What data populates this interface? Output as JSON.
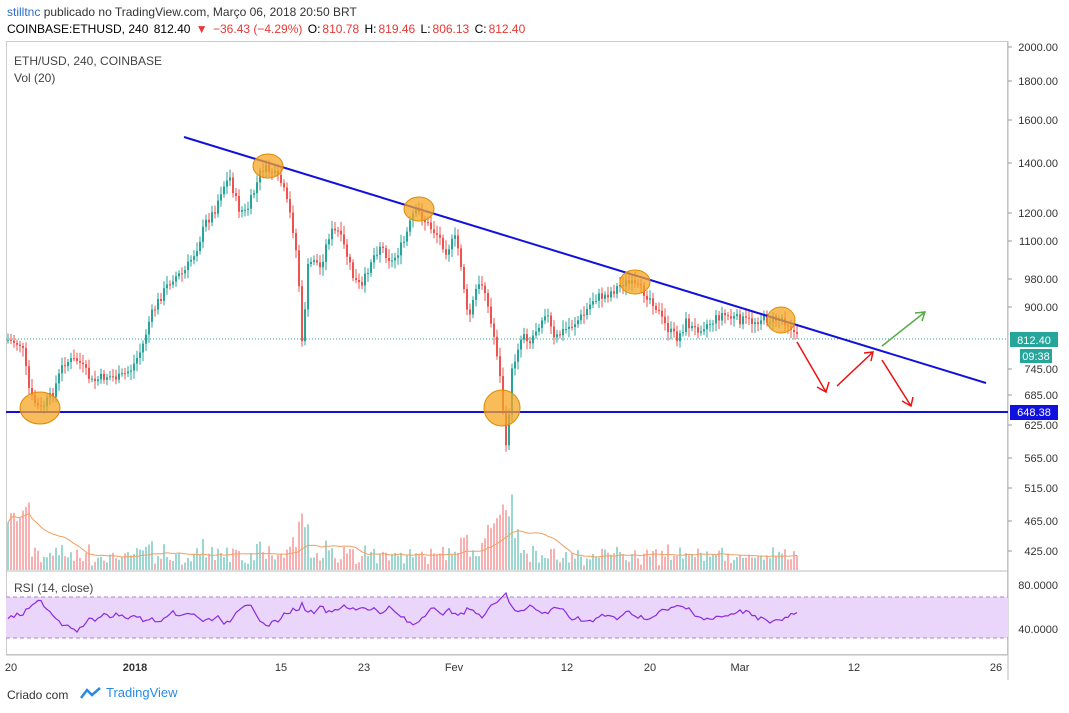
{
  "header": {
    "user": "stilltnc",
    "published_text": "publicado no TradingView.com, Março 06, 2018 20:50 BRT",
    "symbol_line": "COINBASE:ETHUSD, 240",
    "last": "812.40",
    "change": "−3 6.43 (−4.29%)",
    "change_exact": "−36.43 (−4.29%)",
    "open_label": "O:",
    "open": "810.78",
    "high_label": "H:",
    "high": "819.46",
    "low_label": "L:",
    "low": "806.13",
    "close_label": "C:",
    "close": "812.40"
  },
  "panels": {
    "main_label": "ETH/USD, 240, COINBASE",
    "vol_label": "Vol (20)",
    "rsi_label": "RSI (14, close)"
  },
  "price_axis": {
    "ticks": [
      "2000.00",
      "1800.00",
      "1600.00",
      "1400.00",
      "1200.00",
      "1100.00",
      "980.00",
      "900.00",
      "745.00",
      "685.00",
      "625.00",
      "565.00",
      "515.00",
      "465.00",
      "425.00"
    ],
    "current_price_label": "812.40",
    "countdown_label": "09:38",
    "support_label": "648.38"
  },
  "rsi_axis": {
    "ticks": [
      "80.0000",
      "40.0000"
    ]
  },
  "time_axis": {
    "ticks": [
      "20",
      "2018",
      "15",
      "23",
      "Fev",
      "12",
      "20",
      "Mar",
      "12",
      "26"
    ]
  },
  "colors": {
    "up": "#26a69a",
    "down": "#ef5350",
    "trendline": "#1111dd",
    "highlight": "#f5a623",
    "arrow_down": "#ee1111",
    "arrow_up": "#55aa44",
    "rsi_line": "#8a2be2",
    "rsi_band": "#ead6fa"
  },
  "footer": {
    "created": "Criado com",
    "brand": "TradingView"
  }
}
